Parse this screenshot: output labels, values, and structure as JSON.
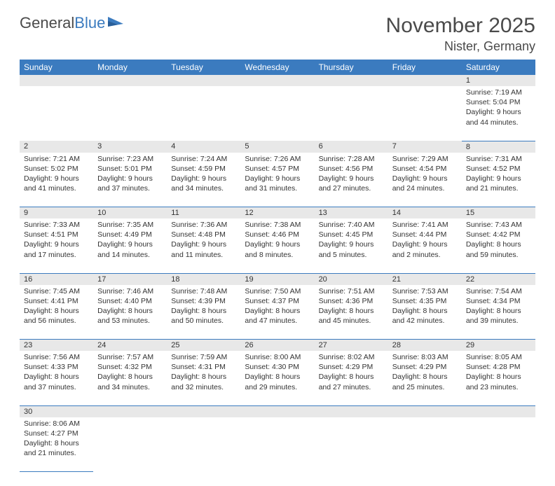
{
  "logo": {
    "text1": "General",
    "text2": "Blue"
  },
  "title": "November 2025",
  "location": "Nister, Germany",
  "colors": {
    "header_bg": "#3b7bbf",
    "header_text": "#ffffff",
    "daynum_bg": "#e8e8e8",
    "border": "#3b7bbf",
    "text": "#333333",
    "page_bg": "#ffffff"
  },
  "weekdays": [
    "Sunday",
    "Monday",
    "Tuesday",
    "Wednesday",
    "Thursday",
    "Friday",
    "Saturday"
  ],
  "weeks": [
    [
      null,
      null,
      null,
      null,
      null,
      null,
      {
        "n": "1",
        "sr": "7:19 AM",
        "ss": "5:04 PM",
        "dl": "9 hours and 44 minutes."
      }
    ],
    [
      {
        "n": "2",
        "sr": "7:21 AM",
        "ss": "5:02 PM",
        "dl": "9 hours and 41 minutes."
      },
      {
        "n": "3",
        "sr": "7:23 AM",
        "ss": "5:01 PM",
        "dl": "9 hours and 37 minutes."
      },
      {
        "n": "4",
        "sr": "7:24 AM",
        "ss": "4:59 PM",
        "dl": "9 hours and 34 minutes."
      },
      {
        "n": "5",
        "sr": "7:26 AM",
        "ss": "4:57 PM",
        "dl": "9 hours and 31 minutes."
      },
      {
        "n": "6",
        "sr": "7:28 AM",
        "ss": "4:56 PM",
        "dl": "9 hours and 27 minutes."
      },
      {
        "n": "7",
        "sr": "7:29 AM",
        "ss": "4:54 PM",
        "dl": "9 hours and 24 minutes."
      },
      {
        "n": "8",
        "sr": "7:31 AM",
        "ss": "4:52 PM",
        "dl": "9 hours and 21 minutes."
      }
    ],
    [
      {
        "n": "9",
        "sr": "7:33 AM",
        "ss": "4:51 PM",
        "dl": "9 hours and 17 minutes."
      },
      {
        "n": "10",
        "sr": "7:35 AM",
        "ss": "4:49 PM",
        "dl": "9 hours and 14 minutes."
      },
      {
        "n": "11",
        "sr": "7:36 AM",
        "ss": "4:48 PM",
        "dl": "9 hours and 11 minutes."
      },
      {
        "n": "12",
        "sr": "7:38 AM",
        "ss": "4:46 PM",
        "dl": "9 hours and 8 minutes."
      },
      {
        "n": "13",
        "sr": "7:40 AM",
        "ss": "4:45 PM",
        "dl": "9 hours and 5 minutes."
      },
      {
        "n": "14",
        "sr": "7:41 AM",
        "ss": "4:44 PM",
        "dl": "9 hours and 2 minutes."
      },
      {
        "n": "15",
        "sr": "7:43 AM",
        "ss": "4:42 PM",
        "dl": "8 hours and 59 minutes."
      }
    ],
    [
      {
        "n": "16",
        "sr": "7:45 AM",
        "ss": "4:41 PM",
        "dl": "8 hours and 56 minutes."
      },
      {
        "n": "17",
        "sr": "7:46 AM",
        "ss": "4:40 PM",
        "dl": "8 hours and 53 minutes."
      },
      {
        "n": "18",
        "sr": "7:48 AM",
        "ss": "4:39 PM",
        "dl": "8 hours and 50 minutes."
      },
      {
        "n": "19",
        "sr": "7:50 AM",
        "ss": "4:37 PM",
        "dl": "8 hours and 47 minutes."
      },
      {
        "n": "20",
        "sr": "7:51 AM",
        "ss": "4:36 PM",
        "dl": "8 hours and 45 minutes."
      },
      {
        "n": "21",
        "sr": "7:53 AM",
        "ss": "4:35 PM",
        "dl": "8 hours and 42 minutes."
      },
      {
        "n": "22",
        "sr": "7:54 AM",
        "ss": "4:34 PM",
        "dl": "8 hours and 39 minutes."
      }
    ],
    [
      {
        "n": "23",
        "sr": "7:56 AM",
        "ss": "4:33 PM",
        "dl": "8 hours and 37 minutes."
      },
      {
        "n": "24",
        "sr": "7:57 AM",
        "ss": "4:32 PM",
        "dl": "8 hours and 34 minutes."
      },
      {
        "n": "25",
        "sr": "7:59 AM",
        "ss": "4:31 PM",
        "dl": "8 hours and 32 minutes."
      },
      {
        "n": "26",
        "sr": "8:00 AM",
        "ss": "4:30 PM",
        "dl": "8 hours and 29 minutes."
      },
      {
        "n": "27",
        "sr": "8:02 AM",
        "ss": "4:29 PM",
        "dl": "8 hours and 27 minutes."
      },
      {
        "n": "28",
        "sr": "8:03 AM",
        "ss": "4:29 PM",
        "dl": "8 hours and 25 minutes."
      },
      {
        "n": "29",
        "sr": "8:05 AM",
        "ss": "4:28 PM",
        "dl": "8 hours and 23 minutes."
      }
    ],
    [
      {
        "n": "30",
        "sr": "8:06 AM",
        "ss": "4:27 PM",
        "dl": "8 hours and 21 minutes."
      },
      null,
      null,
      null,
      null,
      null,
      null
    ]
  ],
  "labels": {
    "sunrise": "Sunrise: ",
    "sunset": "Sunset: ",
    "daylight": "Daylight: "
  }
}
